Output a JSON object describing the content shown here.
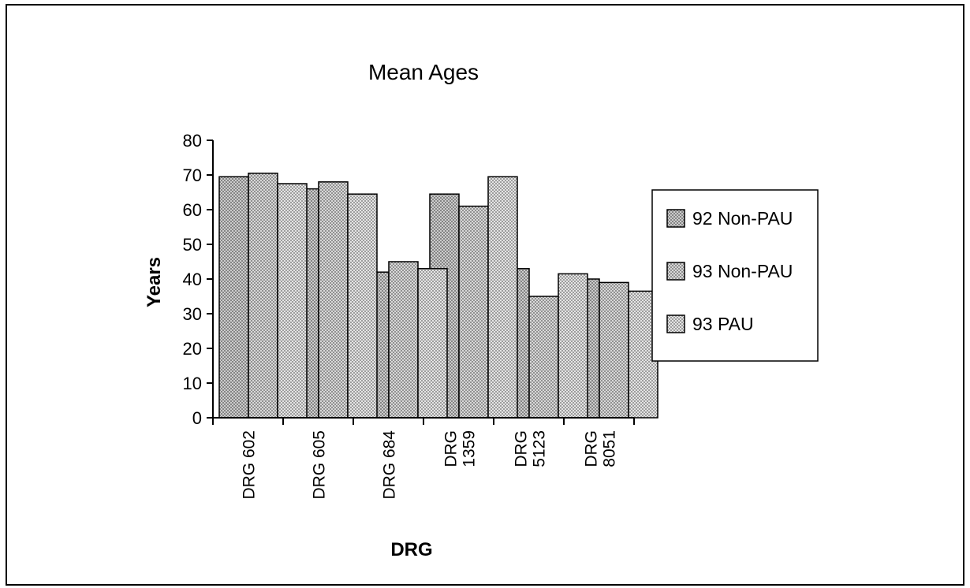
{
  "chart_data": {
    "type": "bar",
    "title": "Mean Ages",
    "xlabel": "DRG",
    "ylabel": "Years",
    "ylim": [
      0,
      80
    ],
    "yticks": [
      0,
      10,
      20,
      30,
      40,
      50,
      60,
      70,
      80
    ],
    "categories": [
      [
        "DRG 602"
      ],
      [
        "DRG 605"
      ],
      [
        "DRG 684"
      ],
      [
        "DRG",
        "1359"
      ],
      [
        "DRG",
        "5123"
      ],
      [
        "DRG",
        "8051"
      ]
    ],
    "series": [
      {
        "name": "92 Non-PAU",
        "values": [
          69.5,
          66,
          42,
          64.5,
          43,
          40
        ],
        "color": "#b8b8b8"
      },
      {
        "name": "93 Non-PAU",
        "values": [
          70.5,
          68,
          45,
          61,
          35,
          39
        ],
        "color": "#c9c9c9"
      },
      {
        "name": "93 PAU",
        "values": [
          67.5,
          64.5,
          43,
          69.5,
          41.5,
          36.5
        ],
        "color": "#dadada"
      }
    ],
    "legend_position": "right",
    "grid": false
  }
}
